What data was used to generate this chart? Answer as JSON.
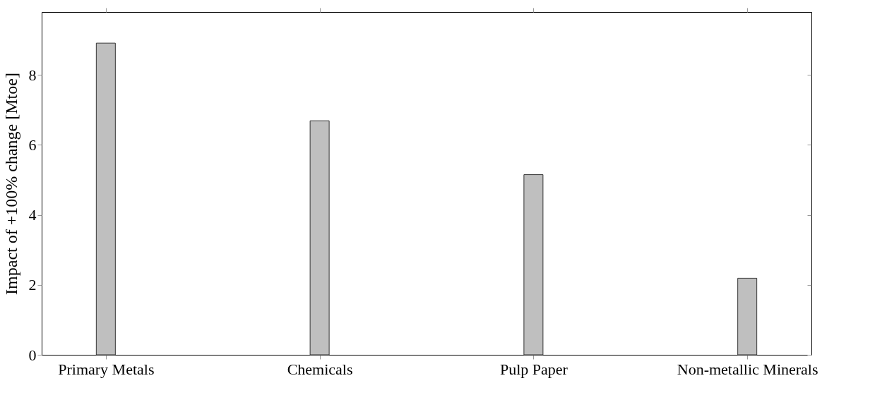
{
  "chart_data": {
    "type": "bar",
    "ylabel": "Impact of +100% change [Mtoe]",
    "categories": [
      "Primary Metals",
      "Chemicals",
      "Pulp Paper",
      "Non-metallic Minerals"
    ],
    "values": [
      8.91,
      6.69,
      5.15,
      2.19
    ],
    "color": "#bfbfbf",
    "ylim": [
      0,
      9.8
    ],
    "yticks": [
      0,
      2,
      4,
      6,
      8
    ],
    "grid": false
  }
}
